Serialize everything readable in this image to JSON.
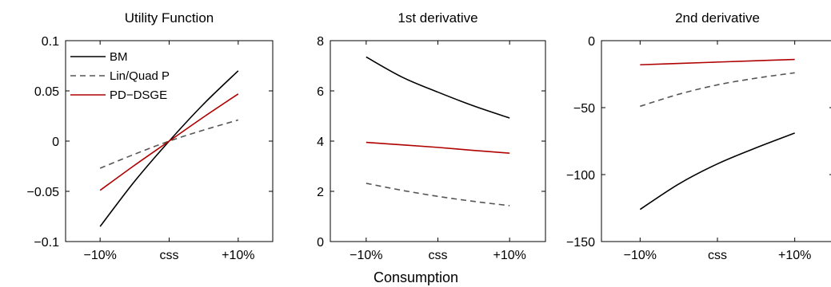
{
  "figure": {
    "xlabel": "Consumption"
  },
  "chart_data": [
    {
      "type": "line",
      "title": "Utility Function",
      "x": [
        -10,
        -5,
        0,
        5,
        10
      ],
      "xticks": [
        -10,
        0,
        10
      ],
      "xtick_labels": [
        "−10%",
        "css",
        "+10%"
      ],
      "xlim": [
        -15,
        15
      ],
      "ylim": [
        -0.1,
        0.1
      ],
      "yticks": [
        -0.1,
        -0.05,
        0,
        0.05,
        0.1
      ],
      "ytick_labels": [
        "−0.1",
        "−0.05",
        "0",
        "0.05",
        "0.1"
      ],
      "legend": {
        "placement": "top-left"
      },
      "series": [
        {
          "name": "BM",
          "color": "#000000",
          "dash": "solid",
          "values": [
            -0.085,
            -0.04,
            0.0,
            0.037,
            0.07
          ]
        },
        {
          "name": "Lin/Quad P",
          "color": "#555555",
          "dash": "dashed",
          "values": [
            -0.027,
            -0.013,
            0.0,
            0.011,
            0.021
          ]
        },
        {
          "name": "PD−DSGE",
          "color": "#b00000",
          "dash": "solid",
          "values": [
            -0.049,
            -0.024,
            0.0,
            0.024,
            0.047
          ]
        }
      ]
    },
    {
      "type": "line",
      "title": "1st derivative",
      "x": [
        -10,
        -5,
        0,
        5,
        10
      ],
      "xticks": [
        -10,
        0,
        10
      ],
      "xtick_labels": [
        "−10%",
        "css",
        "+10%"
      ],
      "xlim": [
        -15,
        15
      ],
      "ylim": [
        0,
        8
      ],
      "yticks": [
        0,
        2,
        4,
        6,
        8
      ],
      "ytick_labels": [
        "0",
        "2",
        "4",
        "6",
        "8"
      ],
      "series": [
        {
          "color": "#000000",
          "dash": "solid",
          "values": [
            7.35,
            6.55,
            5.95,
            5.4,
            4.92
          ]
        },
        {
          "color": "#555555",
          "dash": "dashed",
          "values": [
            2.32,
            2.04,
            1.8,
            1.6,
            1.43
          ]
        },
        {
          "color": "#b00000",
          "dash": "solid",
          "values": [
            3.95,
            3.85,
            3.75,
            3.63,
            3.52
          ]
        }
      ]
    },
    {
      "type": "line",
      "title": "2nd derivative",
      "x": [
        -10,
        -5,
        0,
        5,
        10
      ],
      "xticks": [
        -10,
        0,
        10
      ],
      "xtick_labels": [
        "−10%",
        "css",
        "+10%"
      ],
      "xlim": [
        -15,
        15
      ],
      "ylim": [
        -150,
        0
      ],
      "yticks": [
        -150,
        -100,
        -50,
        0
      ],
      "ytick_labels": [
        "−150",
        "−100",
        "−50",
        "0"
      ],
      "series": [
        {
          "color": "#000000",
          "dash": "solid",
          "values": [
            -126,
            -107,
            -92,
            -80,
            -69
          ]
        },
        {
          "color": "#555555",
          "dash": "dashed",
          "values": [
            -49,
            -40,
            -33,
            -28,
            -24
          ]
        },
        {
          "color": "#b00000",
          "dash": "solid",
          "values": [
            -18,
            -17,
            -16,
            -15,
            -14
          ]
        }
      ]
    }
  ]
}
